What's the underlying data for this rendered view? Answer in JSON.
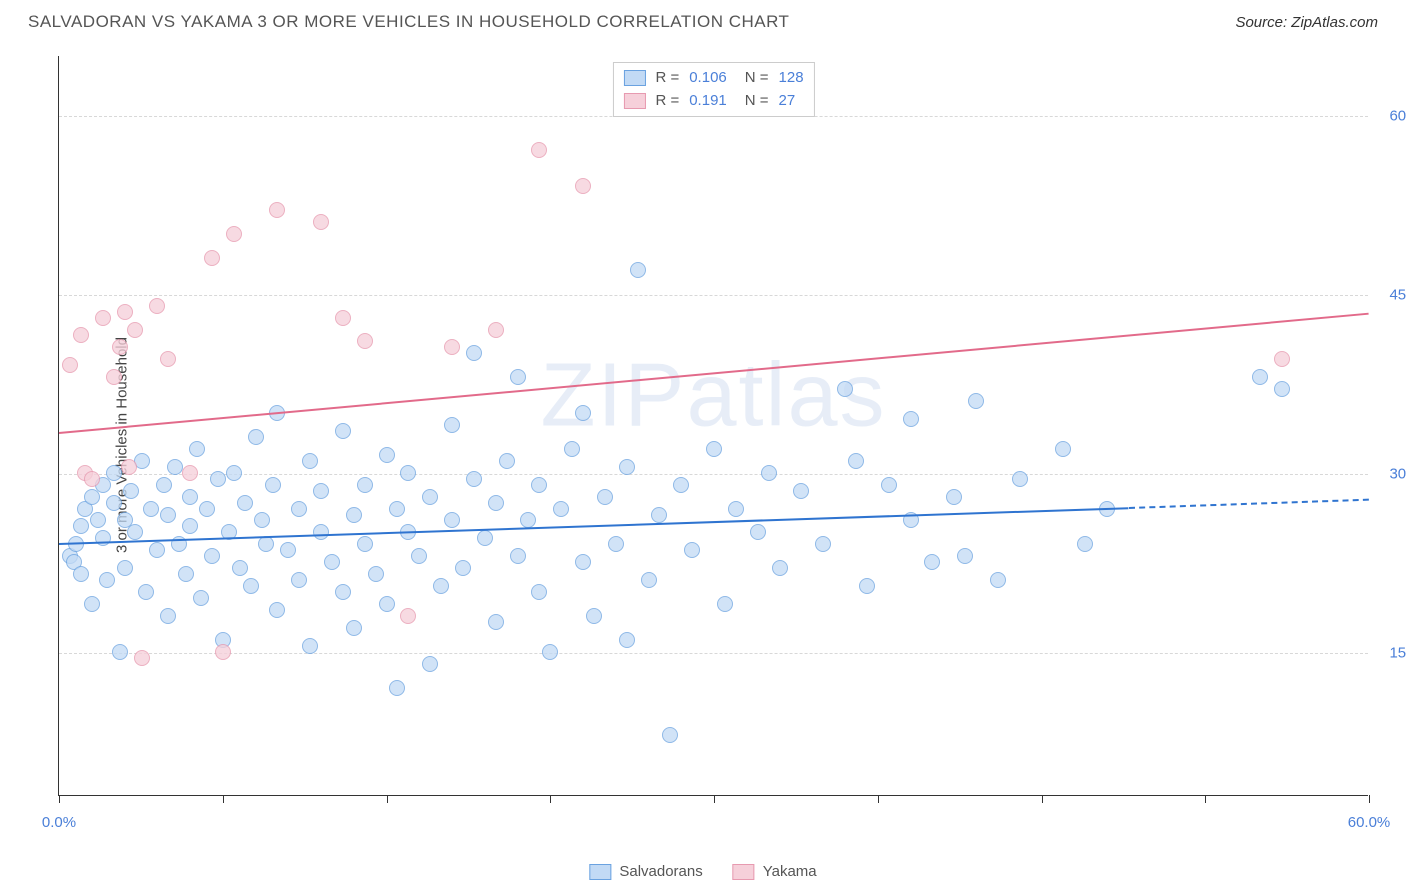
{
  "title": "SALVADORAN VS YAKAMA 3 OR MORE VEHICLES IN HOUSEHOLD CORRELATION CHART",
  "source": "Source: ZipAtlas.com",
  "watermark": "ZIPatlas",
  "ylabel": "3 or more Vehicles in Household",
  "chart": {
    "type": "scatter",
    "xlim": [
      0,
      60
    ],
    "ylim": [
      3,
      65
    ],
    "xticks": [
      0,
      7.5,
      15,
      22.5,
      30,
      37.5,
      45,
      52.5,
      60
    ],
    "xtick_labels": {
      "0": "0.0%",
      "60": "60.0%"
    },
    "yticks": [
      15,
      30,
      45,
      60
    ],
    "ytick_labels": {
      "15": "15.0%",
      "30": "30.0%",
      "45": "45.0%",
      "60": "60.0%"
    },
    "grid_color": "#d8d8d8",
    "background_color": "#ffffff",
    "series": [
      {
        "name": "Salvadorans",
        "fill": "#c2daf5",
        "stroke": "#6aa2e0",
        "opacity": 0.75,
        "radius": 8,
        "R": "0.106",
        "N": "128",
        "regression": {
          "x0": 0,
          "y0": 24.2,
          "x1": 49,
          "y1": 27.2,
          "dashed_x1": 60,
          "dashed_y1": 27.9,
          "color": "#2f74d0"
        },
        "points": [
          [
            0.5,
            23
          ],
          [
            0.7,
            22.5
          ],
          [
            0.8,
            24
          ],
          [
            1,
            25.5
          ],
          [
            1,
            21.5
          ],
          [
            1.2,
            27
          ],
          [
            1.5,
            28
          ],
          [
            1.5,
            19
          ],
          [
            1.8,
            26
          ],
          [
            2,
            24.5
          ],
          [
            2,
            29
          ],
          [
            2.2,
            21
          ],
          [
            2.5,
            27.5
          ],
          [
            2.5,
            30
          ],
          [
            2.8,
            15
          ],
          [
            3,
            26
          ],
          [
            3,
            22
          ],
          [
            3.3,
            28.5
          ],
          [
            3.5,
            25
          ],
          [
            3.8,
            31
          ],
          [
            4,
            20
          ],
          [
            4.2,
            27
          ],
          [
            4.5,
            23.5
          ],
          [
            4.8,
            29
          ],
          [
            5,
            26.5
          ],
          [
            5,
            18
          ],
          [
            5.3,
            30.5
          ],
          [
            5.5,
            24
          ],
          [
            5.8,
            21.5
          ],
          [
            6,
            28
          ],
          [
            6,
            25.5
          ],
          [
            6.3,
            32
          ],
          [
            6.5,
            19.5
          ],
          [
            6.8,
            27
          ],
          [
            7,
            23
          ],
          [
            7.3,
            29.5
          ],
          [
            7.5,
            16
          ],
          [
            7.8,
            25
          ],
          [
            8,
            30
          ],
          [
            8.3,
            22
          ],
          [
            8.5,
            27.5
          ],
          [
            8.8,
            20.5
          ],
          [
            9,
            33
          ],
          [
            9.3,
            26
          ],
          [
            9.5,
            24
          ],
          [
            9.8,
            29
          ],
          [
            10,
            18.5
          ],
          [
            10,
            35
          ],
          [
            10.5,
            23.5
          ],
          [
            11,
            27
          ],
          [
            11,
            21
          ],
          [
            11.5,
            31
          ],
          [
            11.5,
            15.5
          ],
          [
            12,
            25
          ],
          [
            12,
            28.5
          ],
          [
            12.5,
            22.5
          ],
          [
            13,
            20
          ],
          [
            13,
            33.5
          ],
          [
            13.5,
            26.5
          ],
          [
            13.5,
            17
          ],
          [
            14,
            29
          ],
          [
            14,
            24
          ],
          [
            14.5,
            21.5
          ],
          [
            15,
            31.5
          ],
          [
            15,
            19
          ],
          [
            15.5,
            27
          ],
          [
            15.5,
            12
          ],
          [
            16,
            25
          ],
          [
            16,
            30
          ],
          [
            16.5,
            23
          ],
          [
            17,
            28
          ],
          [
            17,
            14
          ],
          [
            17.5,
            20.5
          ],
          [
            18,
            34
          ],
          [
            18,
            26
          ],
          [
            18.5,
            22
          ],
          [
            19,
            29.5
          ],
          [
            19,
            40
          ],
          [
            19.5,
            24.5
          ],
          [
            20,
            27.5
          ],
          [
            20,
            17.5
          ],
          [
            20.5,
            31
          ],
          [
            21,
            23
          ],
          [
            21,
            38
          ],
          [
            21.5,
            26
          ],
          [
            22,
            20
          ],
          [
            22,
            29
          ],
          [
            22.5,
            15
          ],
          [
            23,
            27
          ],
          [
            23.5,
            32
          ],
          [
            24,
            22.5
          ],
          [
            24,
            35
          ],
          [
            24.5,
            18
          ],
          [
            25,
            28
          ],
          [
            25.5,
            24
          ],
          [
            26,
            16
          ],
          [
            26,
            30.5
          ],
          [
            26.5,
            47
          ],
          [
            27,
            21
          ],
          [
            27.5,
            26.5
          ],
          [
            28,
            8
          ],
          [
            28.5,
            29
          ],
          [
            29,
            23.5
          ],
          [
            30,
            32
          ],
          [
            30.5,
            19
          ],
          [
            31,
            27
          ],
          [
            32,
            25
          ],
          [
            32.5,
            30
          ],
          [
            33,
            22
          ],
          [
            34,
            28.5
          ],
          [
            35,
            24
          ],
          [
            36,
            37
          ],
          [
            36.5,
            31
          ],
          [
            37,
            20.5
          ],
          [
            38,
            29
          ],
          [
            39,
            26
          ],
          [
            39,
            34.5
          ],
          [
            40,
            22.5
          ],
          [
            41,
            28
          ],
          [
            41.5,
            23
          ],
          [
            42,
            36
          ],
          [
            43,
            21
          ],
          [
            44,
            29.5
          ],
          [
            46,
            32
          ],
          [
            47,
            24
          ],
          [
            48,
            27
          ],
          [
            55,
            38
          ],
          [
            56,
            37
          ]
        ]
      },
      {
        "name": "Yakama",
        "fill": "#f6d0da",
        "stroke": "#e79ab0",
        "opacity": 0.78,
        "radius": 8,
        "R": "0.191",
        "N": "27",
        "regression": {
          "x0": 0,
          "y0": 33.5,
          "x1": 60,
          "y1": 43.5,
          "color": "#e26a8a"
        },
        "points": [
          [
            0.5,
            39
          ],
          [
            1,
            41.5
          ],
          [
            1.2,
            30
          ],
          [
            1.5,
            29.5
          ],
          [
            2,
            43
          ],
          [
            2.5,
            38
          ],
          [
            2.8,
            40.5
          ],
          [
            3,
            43.5
          ],
          [
            3.2,
            30.5
          ],
          [
            3.5,
            42
          ],
          [
            3.8,
            14.5
          ],
          [
            4.5,
            44
          ],
          [
            5,
            39.5
          ],
          [
            6,
            30
          ],
          [
            7,
            48
          ],
          [
            7.5,
            15
          ],
          [
            8,
            50
          ],
          [
            10,
            52
          ],
          [
            12,
            51
          ],
          [
            13,
            43
          ],
          [
            14,
            41
          ],
          [
            16,
            18
          ],
          [
            18,
            40.5
          ],
          [
            20,
            42
          ],
          [
            22,
            57
          ],
          [
            24,
            54
          ],
          [
            56,
            39.5
          ]
        ]
      }
    ]
  },
  "legend_top": {
    "rows": [
      {
        "swatch_fill": "#c2daf5",
        "swatch_stroke": "#6aa2e0",
        "r_label": "R =",
        "r_val": "0.106",
        "n_label": "N =",
        "n_val": "128"
      },
      {
        "swatch_fill": "#f6d0da",
        "swatch_stroke": "#e79ab0",
        "r_label": "R =",
        "r_val": " 0.191",
        "n_label": "N =",
        "n_val": " 27"
      }
    ]
  },
  "legend_bottom": [
    {
      "label": "Salvadorans",
      "fill": "#c2daf5",
      "stroke": "#6aa2e0"
    },
    {
      "label": "Yakama",
      "fill": "#f6d0da",
      "stroke": "#e79ab0"
    }
  ]
}
